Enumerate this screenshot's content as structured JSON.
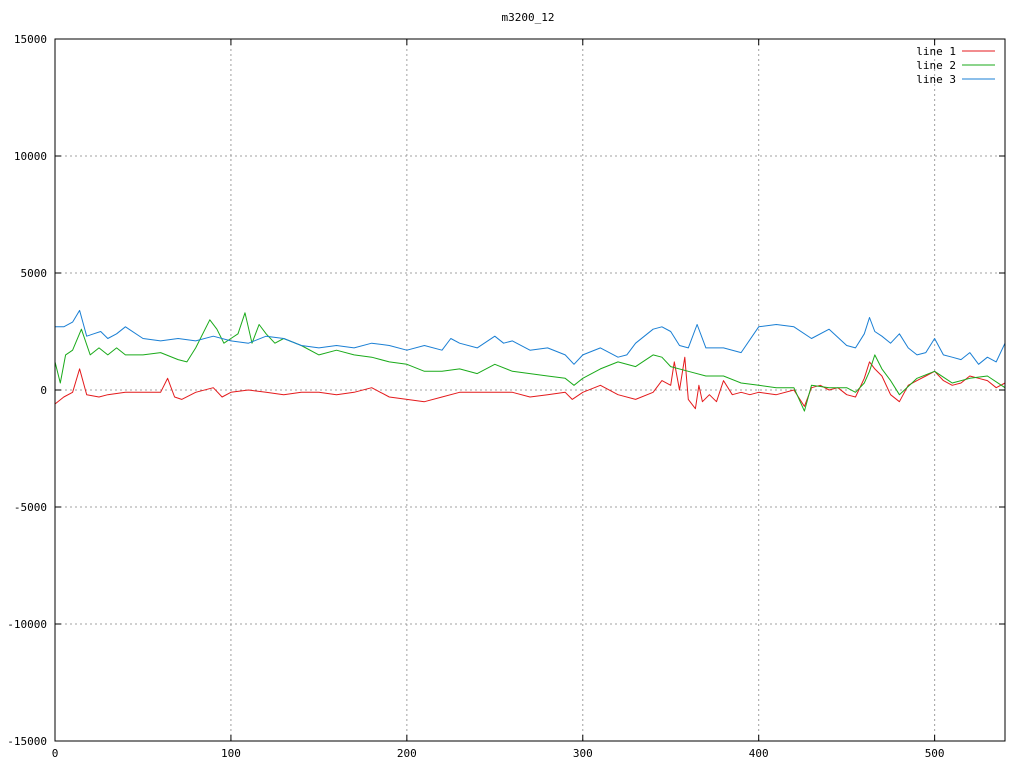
{
  "chart_data": {
    "type": "line",
    "title": "m3200_12",
    "xlabel": "",
    "ylabel": "",
    "xlim": [
      0,
      540
    ],
    "ylim": [
      -15000,
      15000
    ],
    "x_ticks": [
      0,
      100,
      200,
      300,
      400,
      500
    ],
    "y_ticks": [
      -15000,
      -10000,
      -5000,
      0,
      5000,
      10000,
      15000
    ],
    "grid": true,
    "legend_position": "top-right",
    "series": [
      {
        "name": "line 1",
        "color": "#e41a1c",
        "x": [
          0,
          5,
          10,
          14,
          18,
          25,
          30,
          40,
          50,
          60,
          64,
          68,
          72,
          80,
          90,
          95,
          100,
          110,
          120,
          130,
          140,
          150,
          160,
          170,
          180,
          190,
          200,
          210,
          220,
          230,
          240,
          250,
          260,
          270,
          280,
          290,
          294,
          300,
          310,
          320,
          330,
          340,
          345,
          350,
          352,
          355,
          358,
          360,
          364,
          366,
          368,
          372,
          376,
          380,
          385,
          390,
          395,
          400,
          410,
          420,
          426,
          430,
          435,
          440,
          445,
          450,
          455,
          460,
          463,
          466,
          470,
          475,
          480,
          485,
          490,
          495,
          500,
          505,
          510,
          515,
          520,
          525,
          530,
          535,
          540
        ],
        "y": [
          -600,
          -300,
          -100,
          900,
          -200,
          -300,
          -200,
          -100,
          -100,
          -100,
          500,
          -300,
          -400,
          -100,
          100,
          -300,
          -100,
          0,
          -100,
          -200,
          -100,
          -100,
          -200,
          -100,
          100,
          -300,
          -400,
          -500,
          -300,
          -100,
          -100,
          -100,
          -100,
          -300,
          -200,
          -100,
          -400,
          -100,
          200,
          -200,
          -400,
          -100,
          400,
          200,
          1200,
          0,
          1400,
          -400,
          -800,
          200,
          -500,
          -200,
          -500,
          400,
          -200,
          -100,
          -200,
          -100,
          -200,
          0,
          -700,
          100,
          200,
          0,
          100,
          -200,
          -300,
          500,
          1200,
          900,
          600,
          -200,
          -500,
          200,
          400,
          600,
          800,
          400,
          200,
          300,
          600,
          500,
          400,
          100,
          300
        ]
      },
      {
        "name": "line 2",
        "color": "#1aaa1a",
        "x": [
          0,
          3,
          6,
          10,
          15,
          20,
          25,
          30,
          35,
          40,
          50,
          60,
          70,
          75,
          80,
          88,
          92,
          96,
          100,
          104,
          108,
          112,
          116,
          120,
          125,
          130,
          140,
          150,
          160,
          170,
          180,
          190,
          200,
          210,
          220,
          230,
          240,
          250,
          260,
          270,
          280,
          290,
          295,
          300,
          310,
          320,
          330,
          340,
          345,
          350,
          360,
          370,
          380,
          390,
          400,
          410,
          420,
          426,
          430,
          440,
          450,
          455,
          460,
          463,
          466,
          470,
          475,
          480,
          490,
          500,
          510,
          520,
          530,
          540
        ],
        "y": [
          1200,
          300,
          1500,
          1700,
          2600,
          1500,
          1800,
          1500,
          1800,
          1500,
          1500,
          1600,
          1300,
          1200,
          1800,
          3000,
          2600,
          2000,
          2200,
          2400,
          3300,
          2000,
          2800,
          2400,
          2000,
          2200,
          1900,
          1500,
          1700,
          1500,
          1400,
          1200,
          1100,
          800,
          800,
          900,
          700,
          1100,
          800,
          700,
          600,
          500,
          200,
          500,
          900,
          1200,
          1000,
          1500,
          1400,
          1000,
          800,
          600,
          600,
          300,
          200,
          100,
          100,
          -900,
          200,
          100,
          100,
          -100,
          300,
          800,
          1500,
          900,
          400,
          -200,
          500,
          800,
          300,
          500,
          600,
          100
        ]
      },
      {
        "name": "line 3",
        "color": "#1a7fd4",
        "x": [
          0,
          5,
          10,
          14,
          18,
          22,
          26,
          30,
          35,
          40,
          50,
          60,
          70,
          80,
          90,
          100,
          110,
          120,
          130,
          140,
          150,
          160,
          170,
          180,
          190,
          200,
          210,
          220,
          225,
          230,
          240,
          250,
          255,
          260,
          270,
          280,
          290,
          295,
          300,
          310,
          320,
          325,
          330,
          340,
          345,
          350,
          355,
          360,
          365,
          370,
          380,
          390,
          400,
          410,
          420,
          430,
          440,
          450,
          455,
          460,
          463,
          466,
          470,
          475,
          480,
          485,
          490,
          495,
          500,
          505,
          510,
          515,
          520,
          525,
          530,
          535,
          540
        ],
        "y": [
          2700,
          2700,
          2900,
          3400,
          2300,
          2400,
          2500,
          2200,
          2400,
          2700,
          2200,
          2100,
          2200,
          2100,
          2300,
          2100,
          2000,
          2300,
          2200,
          1900,
          1800,
          1900,
          1800,
          2000,
          1900,
          1700,
          1900,
          1700,
          2200,
          2000,
          1800,
          2300,
          2000,
          2100,
          1700,
          1800,
          1500,
          1100,
          1500,
          1800,
          1400,
          1500,
          2000,
          2600,
          2700,
          2500,
          1900,
          1800,
          2800,
          1800,
          1800,
          1600,
          2700,
          2800,
          2700,
          2200,
          2600,
          1900,
          1800,
          2400,
          3100,
          2500,
          2300,
          2000,
          2400,
          1800,
          1500,
          1600,
          2200,
          1500,
          1400,
          1300,
          1600,
          1100,
          1400,
          1200,
          2000
        ]
      }
    ]
  }
}
